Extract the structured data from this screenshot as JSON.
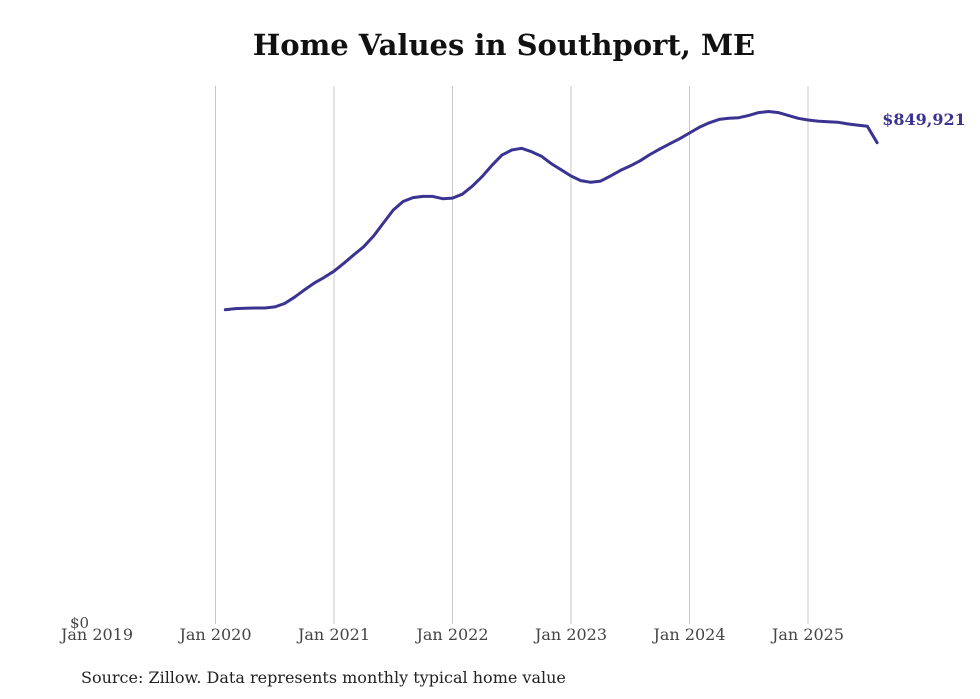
{
  "chart_data": {
    "type": "line",
    "title": "Home Values in Southport, ME",
    "source": "Source: Zillow. Data represents monthly typical home value",
    "y_min_label": "$0",
    "end_label": "$849,921",
    "line_color": "#3b3391",
    "grid_color": "#c8c8c8",
    "x_ticks": [
      {
        "value": 2019.0,
        "label": "Jan 2019"
      },
      {
        "value": 2020.0,
        "label": "Jan 2020"
      },
      {
        "value": 2021.0,
        "label": "Jan 2021"
      },
      {
        "value": 2022.0,
        "label": "Jan 2022"
      },
      {
        "value": 2023.0,
        "label": "Jan 2023"
      },
      {
        "value": 2024.0,
        "label": "Jan 2024"
      },
      {
        "value": 2025.0,
        "label": "Jan 2025"
      }
    ],
    "xlim": [
      2019.0,
      2025.7
    ],
    "ylim": [
      0,
      950000
    ],
    "series": [
      {
        "name": "Typical home value",
        "x": [
          2020.083,
          2020.167,
          2020.25,
          2020.333,
          2020.417,
          2020.5,
          2020.583,
          2020.667,
          2020.75,
          2020.833,
          2020.917,
          2021.0,
          2021.083,
          2021.167,
          2021.25,
          2021.333,
          2021.417,
          2021.5,
          2021.583,
          2021.667,
          2021.75,
          2021.833,
          2021.917,
          2022.0,
          2022.083,
          2022.167,
          2022.25,
          2022.333,
          2022.417,
          2022.5,
          2022.583,
          2022.667,
          2022.75,
          2022.833,
          2022.917,
          2023.0,
          2023.083,
          2023.167,
          2023.25,
          2023.333,
          2023.417,
          2023.5,
          2023.583,
          2023.667,
          2023.75,
          2023.833,
          2023.917,
          2024.0,
          2024.083,
          2024.167,
          2024.25,
          2024.333,
          2024.417,
          2024.5,
          2024.583,
          2024.667,
          2024.75,
          2024.833,
          2024.917,
          2025.0,
          2025.083,
          2025.167,
          2025.25,
          2025.333,
          2025.417,
          2025.5,
          2025.583
        ],
        "values": [
          555000,
          557000,
          557500,
          558000,
          558000,
          560000,
          566000,
          577000,
          590000,
          602000,
          612000,
          623000,
          637000,
          652000,
          666000,
          685000,
          708000,
          731000,
          746000,
          753000,
          755000,
          755000,
          751000,
          752000,
          759000,
          773000,
          790000,
          810000,
          828000,
          837000,
          840000,
          834000,
          826000,
          813000,
          802000,
          791000,
          783000,
          780000,
          782000,
          791000,
          801000,
          809000,
          818000,
          829000,
          839000,
          848000,
          857000,
          867000,
          877000,
          885000,
          891000,
          893000,
          894000,
          898000,
          903000,
          905000,
          903000,
          898000,
          893000,
          890000,
          888000,
          887000,
          886000,
          883000,
          881000,
          879000,
          849921
        ]
      }
    ]
  }
}
